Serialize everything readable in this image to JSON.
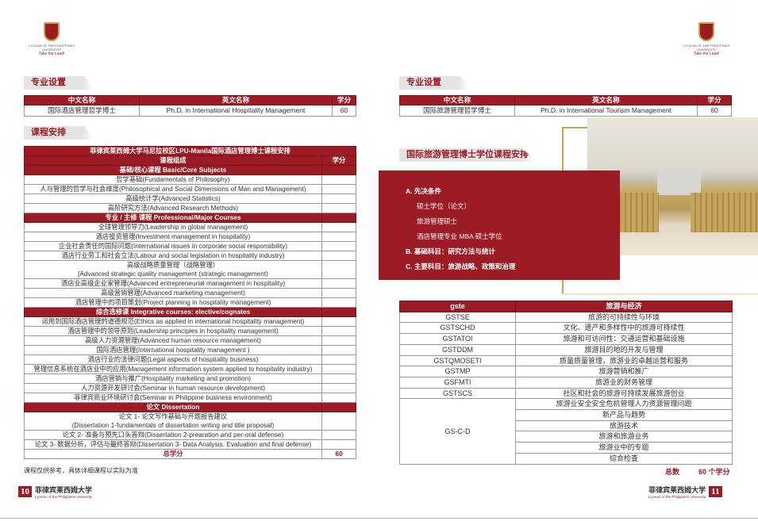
{
  "logo": {
    "line1": "LYCEUM OF THE PHILIPPINES UNIVERSITY",
    "line2": "Take the Lead!"
  },
  "left": {
    "section1": "专业设置",
    "program_table": {
      "headers": [
        "中文名称",
        "英文名称",
        "学分"
      ],
      "row": [
        "国际酒店管理哲学博士",
        "Ph.D. in International Hospitality Management",
        "60"
      ]
    },
    "section2": "课程安排",
    "curriculum": {
      "title": "菲律宾莱西姆大学马尼拉校区LPU-Manila国际酒店管理博士课程安排",
      "col_course": "课程组成",
      "col_credit": "学分",
      "groups": [
        {
          "header": "基础/核心课程 Basic/Core Subjects",
          "items": [
            "哲学基础(Fundamentals of Philosophy)",
            "人与管理的哲学与社会维度(Philosophical and Social Dimensions of Man and Management)",
            "高级统计学(Advanced Statistics)",
            "高阶研究方法(Advanced Research Methods)"
          ]
        },
        {
          "header": "专业 / 主修 课程   Professional/Major Courses",
          "items": [
            "全球管理领导力(Leadership in global management)",
            "酒店投资管理(Investment management in hospitality)",
            "企业社会责任的国际问题(International issues in corporate social responsibility)",
            "酒店行业劳工和社会立法(Labour and social legislation in hospitality industry)",
            "高级战略质量管理（战略管理）\n[Advanced strategic quality management (strategic management)",
            "酒店业高级企业家管理(Advanced entrepreneurial management in hospitality)",
            "高级营销管理(Advanced marketing management)",
            "酒店管理中的项目策划(Project planning in hospitality management)"
          ]
        },
        {
          "header": "综合选修课   Integrative courses: elective/cognates",
          "items": [
            "运用到国际酒店管理的道德规范(Ethics as applied in international hospitality management)",
            "酒店管理中的领导原则(Leadership principles in hospitality management)",
            "高级人力资源管理(Advanced human resource management)",
            "国际酒店管理(International hospitality management )",
            "酒店行业的法律问题(Legal aspects of hospitality business)",
            "管理信息系统在酒店业中的应用(Management information system applied to hospitality industry)",
            "酒店营销与推广(Hospitality marketing and promotion)",
            "人力资源开发研讨会(Seminar in human resource development)",
            "菲律宾商业环境研讨会(Seminar in Philippine business environment)"
          ]
        },
        {
          "header": "论文 Dissertation",
          "items": [
            "论文 1- 论文写作基础与开题报告建议\n(Dissertation 1-fundamentals of dissertation writing and title proposal)",
            "论文 2- 准备与预先口头答辩(Dissertation 2-prearation and per-oral defense)",
            "论文 3- 数据分析，评估与最终答辩(Dissertation 3- Data Analysis, Evaluation and final defense)"
          ]
        }
      ],
      "total_label": "总学分",
      "total_value": "60"
    },
    "note": "课程仅供参考，具体详细课程以实际为准",
    "page_number": "10"
  },
  "right": {
    "section1": "专业设置",
    "program_table": {
      "headers": [
        "中文名称",
        "英文名称",
        "学分"
      ],
      "row": [
        "国际旅游管理哲学博士",
        "Ph.D. in International Tourism Management",
        "60"
      ]
    },
    "section2": "国际旅游管理博士学位课程安排",
    "box": {
      "a": "A. 先决条件",
      "a_items": [
        "硕士学位（论文）",
        "旅游管理硕士",
        "酒店管理专业 MBA 硕士学位"
      ],
      "b": "B. 基础科目：研究方法与统计",
      "c": "C. 主要科目：旅游战略、政策和治理"
    },
    "course_table": {
      "headers": [
        "gste",
        "旅游与经济"
      ],
      "rows": [
        [
          "GSTSE",
          "旅游的可持续性与环境"
        ],
        [
          "GSTSCHD",
          "文化、遗产和多样性中的旅游可持续性"
        ],
        [
          "GSTATOI",
          "旅游和可访问性：交通运营和基础设施"
        ],
        [
          "GSTDDM",
          "旅游目的地的开发与管理"
        ],
        [
          "GSTQMOSETI",
          "质量质量管理，旅游业的卓越运营和服务"
        ],
        [
          "GSTMP",
          "旅游营销和推广"
        ],
        [
          "GSFMTI",
          "旅游业的财务管理"
        ],
        [
          "GSTSCS",
          "社区和社会的旅游可持续发展旅游创业"
        ]
      ],
      "group_code": "GS-C-D",
      "group_items": [
        "旅游业安全安全危机管理人力资源管理问题",
        "新产品与趋势",
        "旅游技术",
        "旅游和旅游业务",
        "旅游业中的专题",
        "综合检查"
      ]
    },
    "total_label": "总数",
    "total_value": "60 个学分",
    "page_number": "11"
  },
  "footer": {
    "university_cn": "菲律宾莱西姆大学",
    "university_en": "Lyceum of the Philippines University"
  },
  "colors": {
    "brand": "#9b1c24",
    "gold": "#c9a44a"
  }
}
